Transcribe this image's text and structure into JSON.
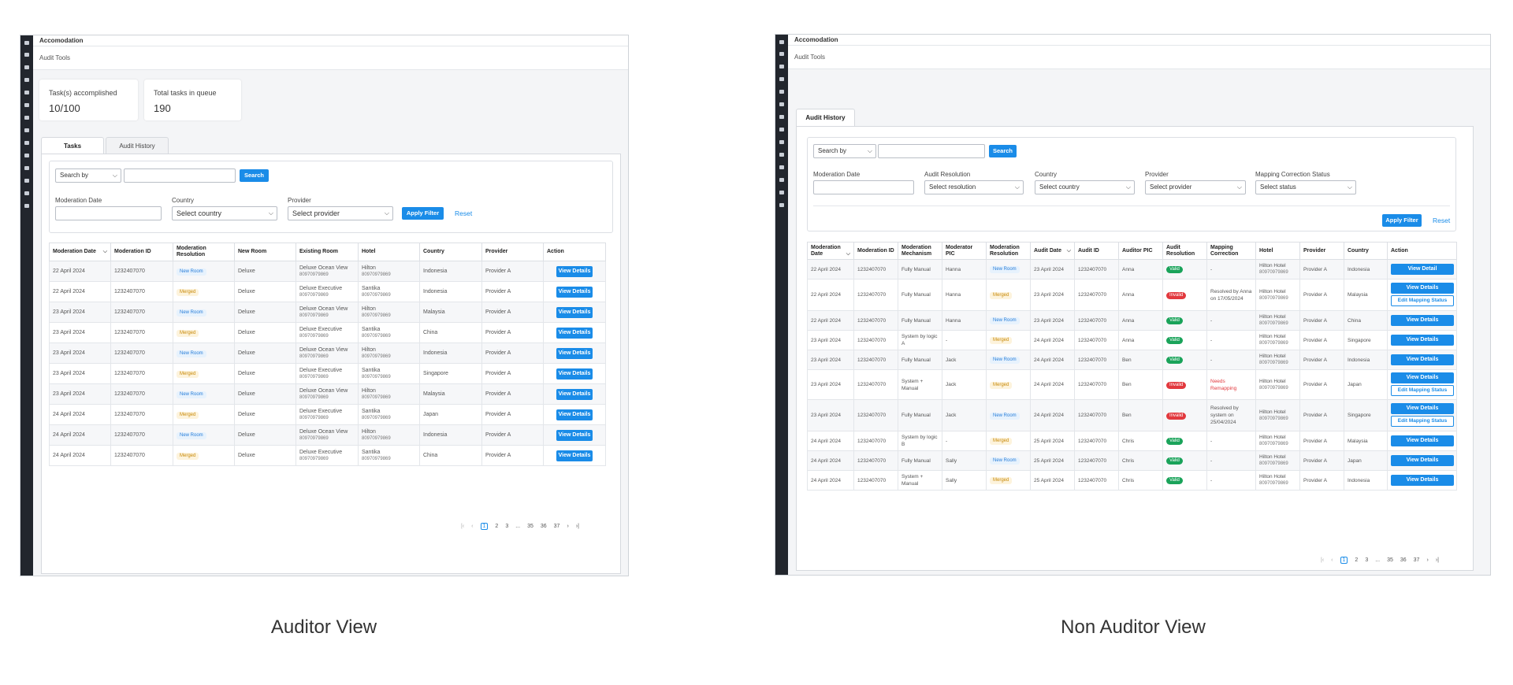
{
  "captions": {
    "left": "Auditor View",
    "right": "Non Auditor View"
  },
  "app": {
    "title": "Accomodation",
    "subtitle": "Audit Tools"
  },
  "left": {
    "stats": [
      {
        "label": "Task(s) accomplished",
        "value": "10/100"
      },
      {
        "label": "Total tasks in queue",
        "value": "190"
      }
    ],
    "tabs": [
      "Tasks",
      "Audit History"
    ],
    "search": {
      "select": "Search by",
      "button": "Search"
    },
    "filters": {
      "date_label": "Moderation Date",
      "country_label": "Country",
      "country_value": "Select country",
      "provider_label": "Provider",
      "provider_value": "Select provider",
      "apply": "Apply Filter",
      "reset": "Reset"
    },
    "columns": [
      "Moderation Date",
      "Moderation ID",
      "Moderation Resolution",
      "New Room",
      "Existing Room",
      "Hotel",
      "Country",
      "Provider",
      "Action"
    ],
    "rows": [
      {
        "date": "22 April 2024",
        "id": "1232407070",
        "res": "New Room",
        "new": "Deluxe",
        "exist": "Deluxe Ocean View",
        "exist_id": "80970979869",
        "hotel": "Hilton",
        "hotel_id": "80970979869",
        "country": "Indonesia",
        "provider": "Provider A",
        "action": "View Details"
      },
      {
        "date": "22 April 2024",
        "id": "1232407070",
        "res": "Merged",
        "new": "Deluxe",
        "exist": "Deluxe Executive",
        "exist_id": "80970979869",
        "hotel": "Santika",
        "hotel_id": "80970979869",
        "country": "Indonesia",
        "provider": "Provider A",
        "action": "View Details"
      },
      {
        "date": "23 April 2024",
        "id": "1232407070",
        "res": "New Room",
        "new": "Deluxe",
        "exist": "Deluxe Ocean View",
        "exist_id": "80970979869",
        "hotel": "Hilton",
        "hotel_id": "80970979869",
        "country": "Malaysia",
        "provider": "Provider A",
        "action": "View Details"
      },
      {
        "date": "23 April 2024",
        "id": "1232407070",
        "res": "Merged",
        "new": "Deluxe",
        "exist": "Deluxe Executive",
        "exist_id": "80970979869",
        "hotel": "Santika",
        "hotel_id": "80970979869",
        "country": "China",
        "provider": "Provider A",
        "action": "View Details"
      },
      {
        "date": "23 April 2024",
        "id": "1232407070",
        "res": "New Room",
        "new": "Deluxe",
        "exist": "Deluxe Ocean View",
        "exist_id": "80970979869",
        "hotel": "Hilton",
        "hotel_id": "80970979869",
        "country": "Indonesia",
        "provider": "Provider A",
        "action": "View Details"
      },
      {
        "date": "23 April 2024",
        "id": "1232407070",
        "res": "Merged",
        "new": "Deluxe",
        "exist": "Deluxe Executive",
        "exist_id": "80970979869",
        "hotel": "Santika",
        "hotel_id": "80970979869",
        "country": "Singapore",
        "provider": "Provider A",
        "action": "View Details"
      },
      {
        "date": "23 April 2024",
        "id": "1232407070",
        "res": "New Room",
        "new": "Deluxe",
        "exist": "Deluxe Ocean View",
        "exist_id": "80970979869",
        "hotel": "Hilton",
        "hotel_id": "80970979869",
        "country": "Malaysia",
        "provider": "Provider A",
        "action": "View Details"
      },
      {
        "date": "24 April 2024",
        "id": "1232407070",
        "res": "Merged",
        "new": "Deluxe",
        "exist": "Deluxe Executive",
        "exist_id": "80970979869",
        "hotel": "Santika",
        "hotel_id": "80970979869",
        "country": "Japan",
        "provider": "Provider A",
        "action": "View Details"
      },
      {
        "date": "24 April 2024",
        "id": "1232407070",
        "res": "New Room",
        "new": "Deluxe",
        "exist": "Deluxe Ocean View",
        "exist_id": "80970979869",
        "hotel": "Hilton",
        "hotel_id": "80970979869",
        "country": "Indonesia",
        "provider": "Provider A",
        "action": "View Details"
      },
      {
        "date": "24 April 2024",
        "id": "1232407070",
        "res": "Merged",
        "new": "Deluxe",
        "exist": "Deluxe Executive",
        "exist_id": "80970979869",
        "hotel": "Santika",
        "hotel_id": "80970979869",
        "country": "China",
        "provider": "Provider A",
        "action": "View Details"
      }
    ],
    "pager": [
      "1",
      "2",
      "3",
      "...",
      "35",
      "36",
      "37"
    ]
  },
  "right": {
    "tab": "Audit History",
    "search": {
      "select": "Search by",
      "button": "Search"
    },
    "filters": {
      "date_label": "Moderation Date",
      "res_label": "Audit Resolution",
      "res_value": "Select resolution",
      "country_label": "Country",
      "country_value": "Select country",
      "provider_label": "Provider",
      "provider_value": "Select provider",
      "status_label": "Mapping Correction Status",
      "status_value": "Select status",
      "apply": "Apply Filter",
      "reset": "Reset"
    },
    "columns": [
      "Moderation Date",
      "Moderation ID",
      "Moderation Mechanism",
      "Moderator PIC",
      "Moderation Resolution",
      "Audit Date",
      "Audit ID",
      "Auditor PIC",
      "Audit Resolution",
      "Mapping Correction",
      "Hotel",
      "Provider",
      "Country",
      "Action"
    ],
    "rows": [
      {
        "date": "22 April 2024",
        "id": "1232407070",
        "mech": "Fully Manual",
        "pic": "Hanna",
        "res": "New Room",
        "adate": "23 April 2024",
        "aid": "1232407070",
        "apic": "Anna",
        "ares": "Valid",
        "corr": "-",
        "hotel": "Hilton Hotel",
        "hotel_id": "80970979869",
        "provider": "Provider A",
        "country": "Indonesia",
        "action": "View Detail",
        "action2": ""
      },
      {
        "date": "22 April 2024",
        "id": "1232407070",
        "mech": "Fully Manual",
        "pic": "Hanna",
        "res": "Merged",
        "adate": "23 April 2024",
        "aid": "1232407070",
        "apic": "Anna",
        "ares": "Invalid",
        "corr": "Resolved by Anna on 17/05/2024",
        "hotel": "Hilton Hotel",
        "hotel_id": "80970979869",
        "provider": "Provider A",
        "country": "Malaysia",
        "action": "View Details",
        "action2": "Edit Mapping Status"
      },
      {
        "date": "22 April 2024",
        "id": "1232407070",
        "mech": "Fully Manual",
        "pic": "Hanna",
        "res": "New Room",
        "adate": "23 April 2024",
        "aid": "1232407070",
        "apic": "Anna",
        "ares": "Valid",
        "corr": "-",
        "hotel": "Hilton Hotel",
        "hotel_id": "80970979869",
        "provider": "Provider A",
        "country": "China",
        "action": "View Details",
        "action2": ""
      },
      {
        "date": "23 April 2024",
        "id": "1232407070",
        "mech": "System by logic A",
        "pic": "-",
        "res": "Merged",
        "adate": "24 April 2024",
        "aid": "1232407070",
        "apic": "Anna",
        "ares": "Valid",
        "corr": "-",
        "hotel": "Hilton Hotel",
        "hotel_id": "80970979869",
        "provider": "Provider A",
        "country": "Singapore",
        "action": "View Details",
        "action2": ""
      },
      {
        "date": "23 April 2024",
        "id": "1232407070",
        "mech": "Fully Manual",
        "pic": "Jack",
        "res": "New Room",
        "adate": "24 April 2024",
        "aid": "1232407070",
        "apic": "Ben",
        "ares": "Valid",
        "corr": "-",
        "hotel": "Hilton Hotel",
        "hotel_id": "80970979869",
        "provider": "Provider A",
        "country": "Indonesia",
        "action": "View Details",
        "action2": ""
      },
      {
        "date": "23 April 2024",
        "id": "1232407070",
        "mech": "System + Manual",
        "pic": "Jack",
        "res": "Merged",
        "adate": "24 April 2024",
        "aid": "1232407070",
        "apic": "Ben",
        "ares": "Invalid",
        "corr": "Needs Remapping",
        "corr_red": true,
        "hotel": "Hilton Hotel",
        "hotel_id": "80970979869",
        "provider": "Provider A",
        "country": "Japan",
        "action": "View Details",
        "action2": "Edit Mapping Status"
      },
      {
        "date": "23 April 2024",
        "id": "1232407070",
        "mech": "Fully Manual",
        "pic": "Jack",
        "res": "New Room",
        "adate": "24 April 2024",
        "aid": "1232407070",
        "apic": "Ben",
        "ares": "Invalid",
        "corr": "Resolved by system on 25/04/2024",
        "hotel": "Hilton Hotel",
        "hotel_id": "80970979869",
        "provider": "Provider A",
        "country": "Singapore",
        "action": "View Details",
        "action2": "Edit Mapping Status"
      },
      {
        "date": "24 April 2024",
        "id": "1232407070",
        "mech": "System by logic B",
        "pic": "-",
        "res": "Merged",
        "adate": "25 April 2024",
        "aid": "1232407070",
        "apic": "Chris",
        "ares": "Valid",
        "corr": "-",
        "hotel": "Hilton Hotel",
        "hotel_id": "80970979869",
        "provider": "Provider A",
        "country": "Malaysia",
        "action": "View Details",
        "action2": ""
      },
      {
        "date": "24 April 2024",
        "id": "1232407070",
        "mech": "Fully Manual",
        "pic": "Sally",
        "res": "New Room",
        "adate": "25 April 2024",
        "aid": "1232407070",
        "apic": "Chris",
        "ares": "Valid",
        "corr": "-",
        "hotel": "Hilton Hotel",
        "hotel_id": "80970979869",
        "provider": "Provider A",
        "country": "Japan",
        "action": "View Details",
        "action2": ""
      },
      {
        "date": "24 April 2024",
        "id": "1232407070",
        "mech": "System + Manual",
        "pic": "Sally",
        "res": "Merged",
        "adate": "25 April 2024",
        "aid": "1232407070",
        "apic": "Chris",
        "ares": "Valid",
        "corr": "-",
        "hotel": "Hilton Hotel",
        "hotel_id": "80970979869",
        "provider": "Provider A",
        "country": "Indonesia",
        "action": "View Details",
        "action2": ""
      }
    ],
    "pager": [
      "1",
      "2",
      "3",
      "...",
      "35",
      "36",
      "37"
    ]
  }
}
